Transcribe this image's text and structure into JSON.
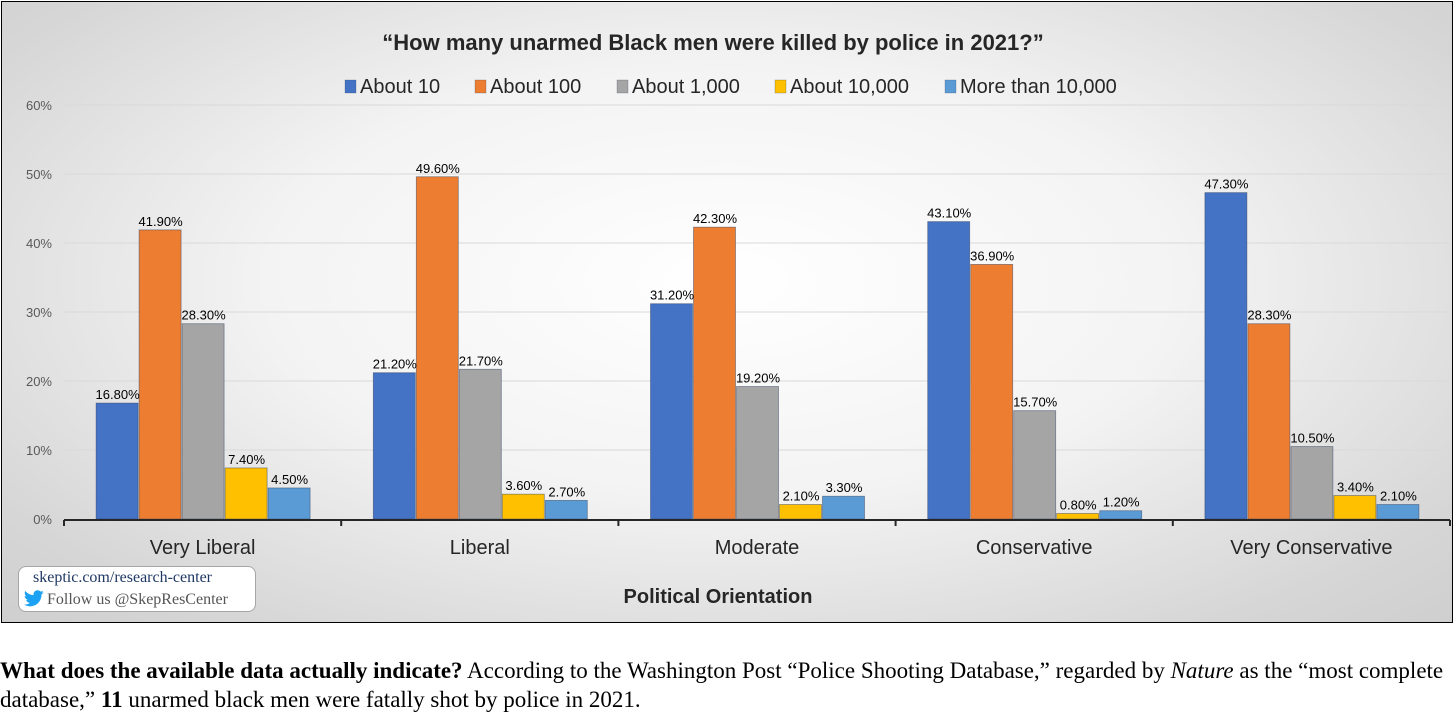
{
  "chart_data": {
    "type": "bar",
    "title": "“How many unarmed Black men were killed by police in 2021?”",
    "xlabel": "Political Orientation",
    "ylabel": "",
    "ylim": [
      0,
      60
    ],
    "yticks": [
      0,
      10,
      20,
      30,
      40,
      50,
      60
    ],
    "ytick_labels": [
      "0%",
      "10%",
      "20%",
      "30%",
      "40%",
      "50%",
      "60%"
    ],
    "grid": true,
    "legend_position": "top",
    "categories": [
      "Very Liberal",
      "Liberal",
      "Moderate",
      "Conservative",
      "Very Conservative"
    ],
    "series": [
      {
        "name": "About 10",
        "color": "#4472c4",
        "values": [
          16.8,
          21.2,
          31.2,
          43.1,
          47.3
        ],
        "labels": [
          "16.80%",
          "21.20%",
          "31.20%",
          "43.10%",
          "47.30%"
        ]
      },
      {
        "name": "About 100",
        "color": "#ed7d31",
        "values": [
          41.9,
          49.6,
          42.3,
          36.9,
          28.3
        ],
        "labels": [
          "41.90%",
          "49.60%",
          "42.30%",
          "36.90%",
          "28.30%"
        ]
      },
      {
        "name": "About 1,000",
        "color": "#a5a5a5",
        "values": [
          28.3,
          21.7,
          19.2,
          15.7,
          10.5
        ],
        "labels": [
          "28.30%",
          "21.70%",
          "19.20%",
          "15.70%",
          "10.50%"
        ]
      },
      {
        "name": "About 10,000",
        "color": "#ffc000",
        "values": [
          7.4,
          3.6,
          2.1,
          0.8,
          3.4
        ],
        "labels": [
          "7.40%",
          "3.60%",
          "2.10%",
          "0.80%",
          "3.40%"
        ]
      },
      {
        "name": "More than 10,000",
        "color": "#5b9bd5",
        "values": [
          4.5,
          2.7,
          3.3,
          1.2,
          2.1
        ],
        "labels": [
          "4.50%",
          "2.70%",
          "3.30%",
          "1.20%",
          "2.10%"
        ]
      }
    ]
  },
  "badge": {
    "site": "skeptic.com/research-center",
    "follow": "Follow us @SkepResCenter",
    "twitter_color": "#1da1f2"
  },
  "caption": {
    "bold_lead": "What does the available data actually indicate?",
    "part1": " According to the Washington Post “Police Shooting Database,” regarded by ",
    "italic": "Nature",
    "part2": " as the “most complete database,” ",
    "bold_count": "11",
    "part3": " unarmed black men were fatally shot by police in 2021."
  }
}
